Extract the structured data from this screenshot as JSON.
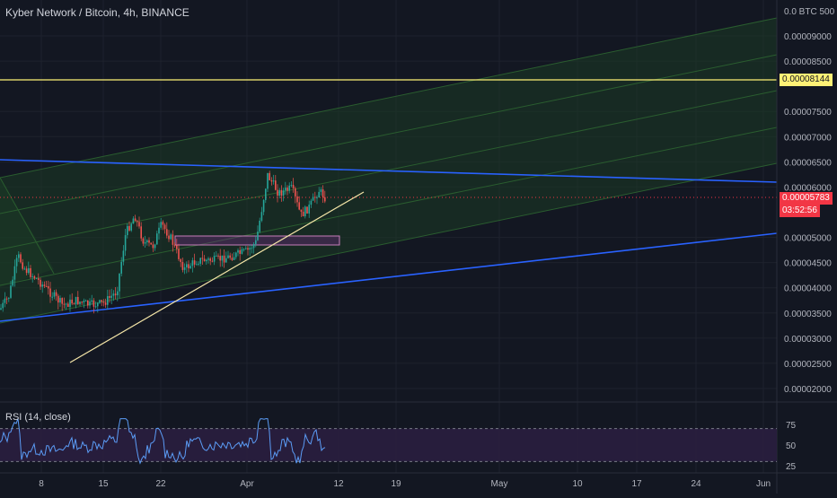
{
  "header": {
    "title": "Kyber Network / Bitcoin, 4h, BINANCE"
  },
  "price_axis": {
    "currency_label": "0.0 BTC 500",
    "ticks": [
      "0.00009000",
      "0.00008500",
      "0.00007500",
      "0.00007000",
      "0.00006500",
      "0.00006000",
      "0.00005000",
      "0.00004500",
      "0.00004000",
      "0.00003500",
      "0.00003000",
      "0.00002500",
      "0.00002000"
    ],
    "tick_values": [
      9000,
      8500,
      7500,
      7000,
      6500,
      6000,
      5000,
      4500,
      4000,
      3500,
      3000,
      2500,
      2000
    ],
    "hline_label": "0.00008144",
    "last_price_label": "0.00005783",
    "countdown_label": "03:52:56"
  },
  "rsi": {
    "label": "RSI (14, close)",
    "ticks": [
      "75",
      "50",
      "25"
    ],
    "tick_values": [
      75,
      50,
      25
    ]
  },
  "time_axis": {
    "labels": [
      "8",
      "15",
      "22",
      "Apr",
      "12",
      "19",
      "May",
      "10",
      "17",
      "24",
      "Jun"
    ]
  },
  "colors": {
    "background": "#131722",
    "grid": "#1e222d",
    "up_candle": "#26a69a",
    "down_candle": "#ef5350",
    "channel_line": "#2a5d2f",
    "channel_fill": "#1b3a24",
    "blue_line": "#2962ff",
    "yellow_line": "#fff176",
    "trendline": "#f5e6a8",
    "rsi_line": "#7e57c2",
    "rsi_band": "#2a1e3f",
    "last_price": "#f23645"
  }
}
